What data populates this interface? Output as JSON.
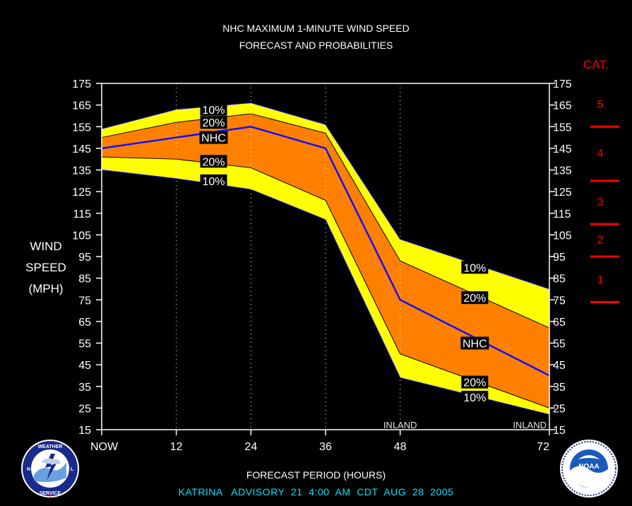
{
  "header": {
    "title_line1": "NHC MAXIMUM 1-MINUTE WIND SPEED",
    "title_line2": "FORECAST AND PROBABILITIES"
  },
  "y_axis_label": [
    "WIND",
    "SPEED",
    "(MPH)"
  ],
  "x_axis_label": "FORECAST PERIOD (HOURS)",
  "footer": "KATRINA   ADVISORY  21  4:00  AM  CDT  AUG  28  2005",
  "category_scale": {
    "title": "CAT.",
    "categories": [
      {
        "label": "5",
        "min": 156,
        "max": 175
      },
      {
        "label": "4",
        "min": 131,
        "max": 155
      },
      {
        "label": "3",
        "min": 111,
        "max": 130
      },
      {
        "label": "2",
        "min": 96,
        "max": 110
      },
      {
        "label": "1",
        "min": 74,
        "max": 95
      }
    ],
    "boundaries": [
      155,
      130,
      110,
      95,
      74
    ]
  },
  "annotations": {
    "inland_labels": [
      {
        "text": "INLAND",
        "x": 48
      },
      {
        "text": "INLAND",
        "x": 72
      }
    ],
    "band_labels": [
      {
        "text": "10%",
        "x": 18,
        "y": 163
      },
      {
        "text": "20%",
        "x": 18,
        "y": 157
      },
      {
        "text": "NHC",
        "x": 18,
        "y": 150
      },
      {
        "text": "20%",
        "x": 18,
        "y": 139
      },
      {
        "text": "10%",
        "x": 18,
        "y": 130
      },
      {
        "text": "10%",
        "x": 60,
        "y": 90
      },
      {
        "text": "20%",
        "x": 60,
        "y": 76
      },
      {
        "text": "NHC",
        "x": 60,
        "y": 55
      },
      {
        "text": "20%",
        "x": 60,
        "y": 37
      },
      {
        "text": "10%",
        "x": 60,
        "y": 30
      }
    ]
  },
  "colors": {
    "background": "#000000",
    "outer_band": "#ffff00",
    "inner_band": "#ff8000",
    "nhc_line": "#1010ff",
    "category": "#ff0000",
    "footer": "#00e5ff"
  },
  "icons": [
    "nws-logo",
    "noaa-logo"
  ],
  "chart_data": {
    "type": "area",
    "title": "NHC MAXIMUM 1-MINUTE WIND SPEED FORECAST AND PROBABILITIES",
    "xlabel": "FORECAST PERIOD (HOURS)",
    "ylabel": "WIND SPEED (MPH)",
    "x": [
      0,
      12,
      24,
      36,
      48,
      72
    ],
    "x_tick_labels": [
      "NOW",
      "12",
      "24",
      "36",
      "48",
      "72"
    ],
    "xlim": [
      0,
      72
    ],
    "ylim": [
      15,
      175
    ],
    "y_ticks": [
      15,
      25,
      35,
      45,
      55,
      65,
      75,
      85,
      95,
      105,
      115,
      125,
      135,
      145,
      155,
      165,
      175
    ],
    "grid_x": [
      12,
      24,
      36,
      48
    ],
    "series": [
      {
        "name": "10%",
        "role": "upper",
        "values": [
          154,
          163,
          166,
          156,
          103,
          80
        ]
      },
      {
        "name": "20%",
        "role": "upper",
        "values": [
          150,
          157,
          161,
          152,
          93,
          62
        ]
      },
      {
        "name": "NHC",
        "values": [
          145,
          150,
          155,
          145,
          75,
          40
        ]
      },
      {
        "name": "20%",
        "role": "lower",
        "values": [
          141,
          140,
          136,
          121,
          50,
          25
        ]
      },
      {
        "name": "10%",
        "role": "lower",
        "values": [
          135,
          131,
          126,
          112,
          39,
          22
        ]
      }
    ]
  }
}
